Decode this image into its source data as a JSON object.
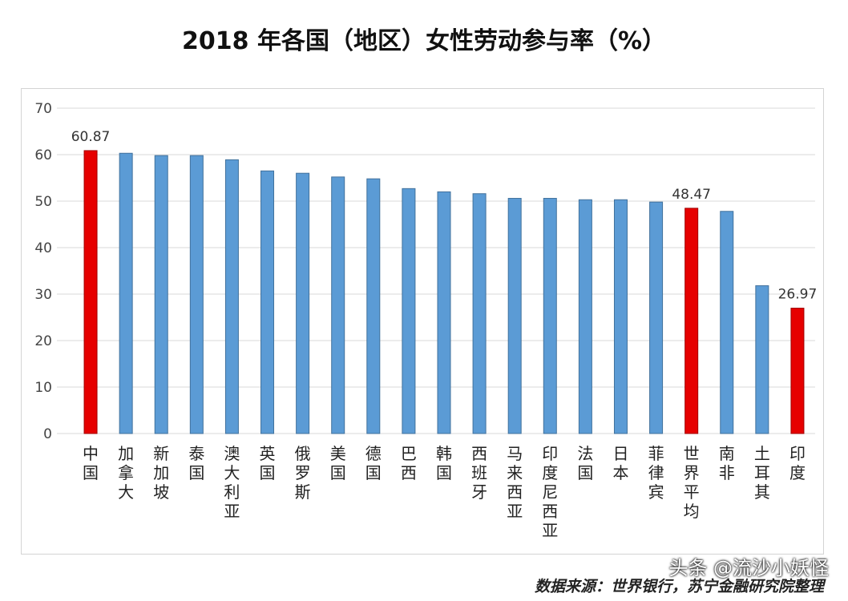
{
  "chart_data": {
    "type": "bar",
    "title": "2018 年各国（地区）女性劳动参与率（%）",
    "categories": [
      "中国",
      "加拿大",
      "新加坡",
      "泰国",
      "澳大利亚",
      "英国",
      "俄罗斯",
      "美国",
      "德国",
      "巴西",
      "韩国",
      "西班牙",
      "马来西亚",
      "印度尼西亚",
      "法国",
      "日本",
      "菲律宾",
      "世界平均",
      "南非",
      "土耳其",
      "印度"
    ],
    "values": [
      60.87,
      60.3,
      59.8,
      59.8,
      58.9,
      56.5,
      56.0,
      55.2,
      54.8,
      52.7,
      52.0,
      51.6,
      50.6,
      50.6,
      50.3,
      50.3,
      49.8,
      48.47,
      47.8,
      31.8,
      26.97
    ],
    "highlighted": [
      "中国",
      "世界平均",
      "印度"
    ],
    "data_labels": {
      "中国": "60.87",
      "世界平均": "48.47",
      "印度": "26.97"
    },
    "ylim": [
      0,
      70
    ],
    "yticks": [
      0,
      10,
      20,
      30,
      40,
      50,
      60,
      70
    ],
    "grid": true,
    "colors": {
      "bar": "#5b9bd5",
      "highlight": "#e60000",
      "bar_edge": "#41719c",
      "highlight_edge": "#a00000",
      "grid": "#d9d9d9"
    }
  },
  "source": "数据来源：世界银行，苏宁金融研究院整理",
  "watermark": "头条 @流沙小妖怪"
}
